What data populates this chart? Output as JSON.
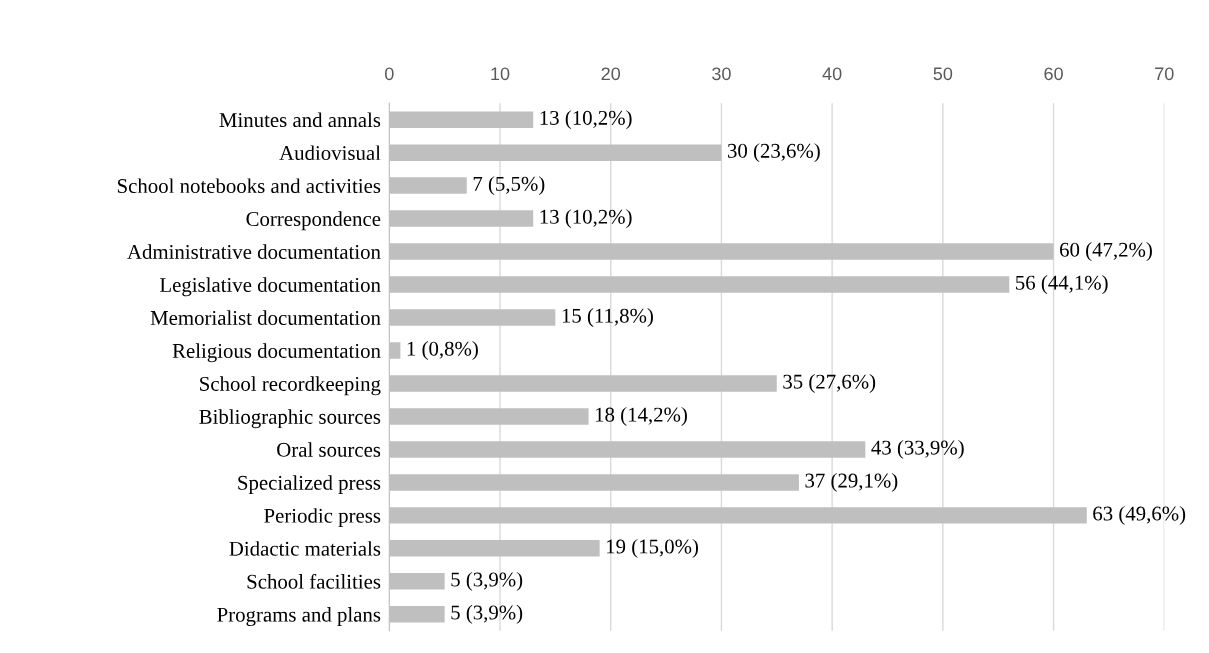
{
  "chart_data": {
    "type": "bar",
    "orientation": "horizontal",
    "categories": [
      "Minutes and annals",
      "Audiovisual",
      "School notebooks and activities",
      "Correspondence",
      "Administrative documentation",
      "Legislative documentation",
      "Memorialist documentation",
      "Religious documentation",
      "School recordkeeping",
      "Bibliographic sources",
      "Oral sources",
      "Specialized press",
      "Periodic press",
      "Didactic materials",
      "School facilities",
      "Programs and plans"
    ],
    "values": [
      13,
      30,
      7,
      13,
      60,
      56,
      15,
      1,
      35,
      18,
      43,
      37,
      63,
      19,
      5,
      5
    ],
    "value_labels": [
      "13 (10,2%)",
      "30 (23,6%)",
      "7 (5,5%)",
      "13 (10,2%)",
      "60 (47,2%)",
      "56 (44,1%)",
      "15 (11,8%)",
      "1 (0,8%)",
      "35 (27,6%)",
      "18 (14,2%)",
      "43 (33,9%)",
      "37 (29,1%)",
      "63 (49,6%)",
      "19 (15,0%)",
      "5 (3,9%)",
      "5 (3,9%)"
    ],
    "color": "#bfbfbf",
    "xlim": [
      0,
      70
    ],
    "xticks": [
      0,
      10,
      20,
      30,
      40,
      50,
      60,
      70
    ],
    "grid": "x"
  }
}
